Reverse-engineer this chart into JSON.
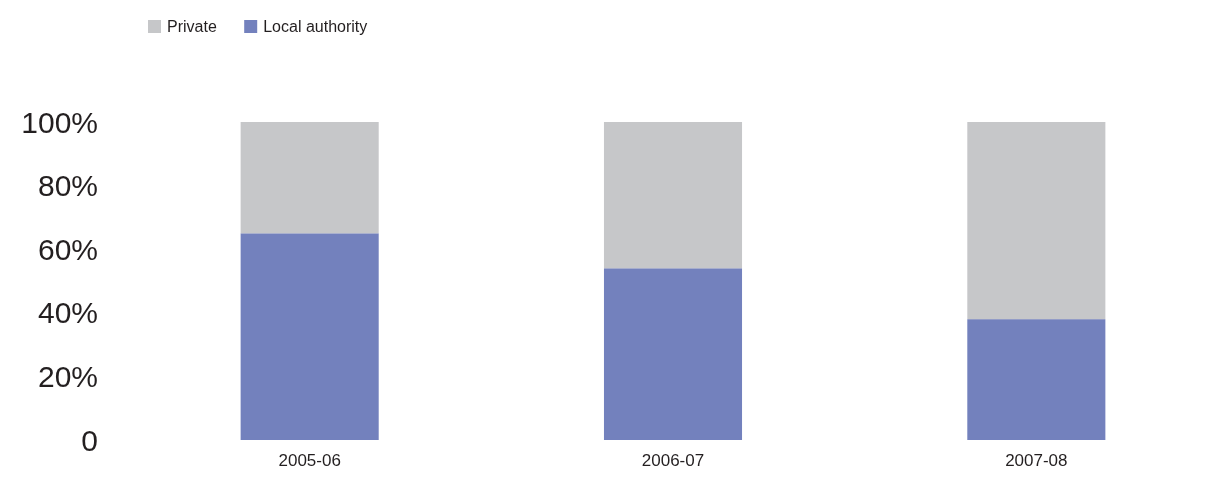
{
  "chart_data": {
    "type": "bar",
    "stacked": true,
    "categories": [
      "2005-06",
      "2006-07",
      "2007-08"
    ],
    "series": [
      {
        "name": "Local authority",
        "color": "#7381bd",
        "values": [
          65,
          54,
          38
        ]
      },
      {
        "name": "Private",
        "color": "#c6c7c9",
        "values": [
          35,
          46,
          62
        ]
      }
    ],
    "ylim": [
      0,
      100
    ],
    "yticks": [
      {
        "value": 0,
        "label": "0"
      },
      {
        "value": 20,
        "label": "20%"
      },
      {
        "value": 40,
        "label": "40%"
      },
      {
        "value": 60,
        "label": "60%"
      },
      {
        "value": 80,
        "label": "80%"
      },
      {
        "value": 100,
        "label": "100%"
      }
    ],
    "legend": "top left",
    "grid": false
  }
}
